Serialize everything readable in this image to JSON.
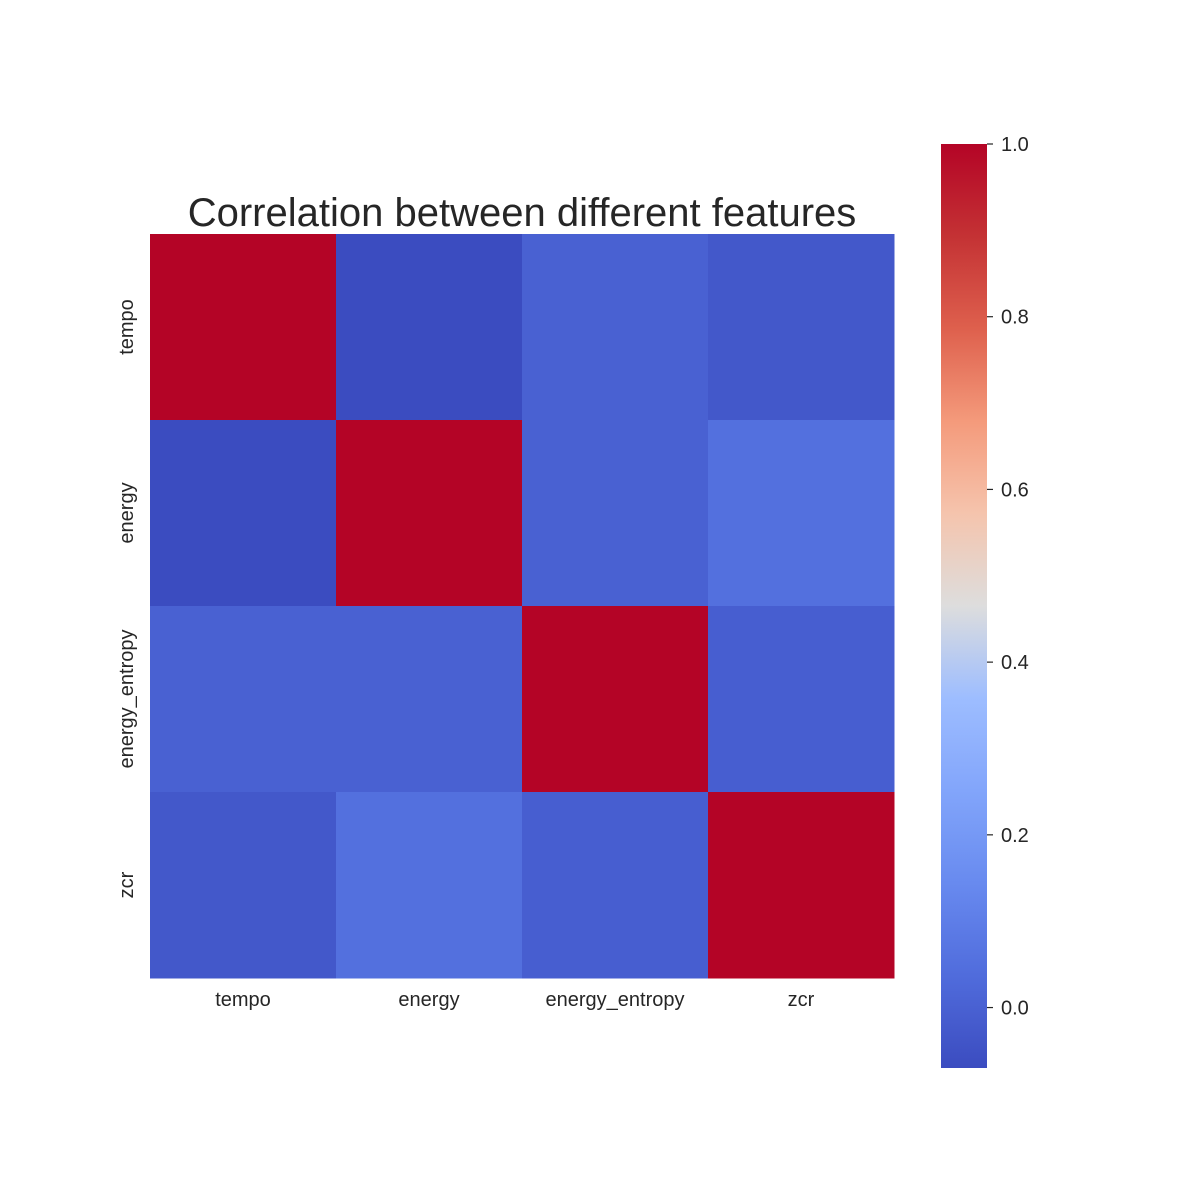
{
  "chart_data": {
    "type": "heatmap",
    "title": "Correlation between different features",
    "xlabel": "",
    "ylabel": "",
    "x_categories": [
      "tempo",
      "energy",
      "energy_entropy",
      "zcr"
    ],
    "y_categories": [
      "tempo",
      "energy",
      "energy_entropy",
      "zcr"
    ],
    "values": [
      [
        1.0,
        -0.07,
        0.0,
        -0.03
      ],
      [
        -0.07,
        1.0,
        0.0,
        0.05
      ],
      [
        0.0,
        0.0,
        1.0,
        -0.01
      ],
      [
        -0.03,
        0.05,
        -0.01,
        1.0
      ]
    ],
    "colormap": "coolwarm",
    "vmin": -0.07,
    "vmax": 1.0,
    "colorbar": {
      "position": "right",
      "ticks": [
        0.0,
        0.2,
        0.4,
        0.6,
        0.8,
        1.0
      ],
      "tick_labels": [
        "0.0",
        "0.2",
        "0.4",
        "0.6",
        "0.8",
        "1.0"
      ]
    },
    "grid": false
  }
}
